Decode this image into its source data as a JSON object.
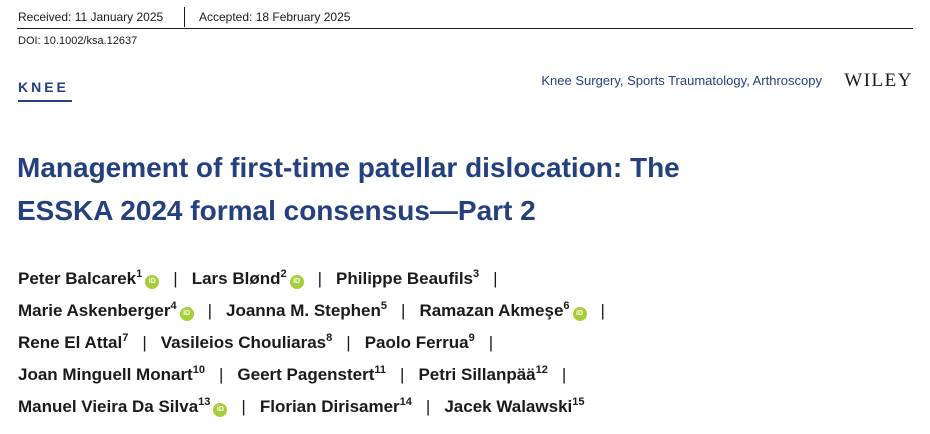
{
  "header": {
    "received": "Received: 11 January 2025",
    "accepted": "Accepted: 18 February 2025",
    "doi": "DOI: 10.1002/ksa.12637"
  },
  "section_label": "KNEE",
  "journal_name": "Knee Surgery, Sports Traumatology, Arthroscopy",
  "publisher": "WILEY",
  "title_lines": [
    "Management of first-time patellar dislocation: The",
    "ESSKA 2024 formal consensus—Part 2"
  ],
  "orcid_badge": "iD",
  "separator": "|",
  "authors": [
    {
      "name": "Peter Balcarek",
      "aff": "1"
    },
    {
      "name": "Lars Blønd",
      "aff": "2"
    },
    {
      "name": "Philippe Beaufils",
      "aff": "3"
    },
    {
      "name": "Marie Askenberger",
      "aff": "4"
    },
    {
      "name": "Joanna M. Stephen",
      "aff": "5"
    },
    {
      "name": "Ramazan Akmeşe",
      "aff": "6"
    },
    {
      "name": "Rene El Attal",
      "aff": "7"
    },
    {
      "name": "Vasileios Chouliaras",
      "aff": "8"
    },
    {
      "name": "Paolo Ferrua",
      "aff": "9"
    },
    {
      "name": "Joan Minguell Monart",
      "aff": "10"
    },
    {
      "name": "Geert Pagenstert",
      "aff": "11"
    },
    {
      "name": "Petri Sillanpää",
      "aff": "12"
    },
    {
      "name": "Manuel Vieira Da Silva",
      "aff": "13"
    },
    {
      "name": "Florian Dirisamer",
      "aff": "14"
    },
    {
      "name": "Jacek Walawski",
      "aff": "15"
    }
  ]
}
